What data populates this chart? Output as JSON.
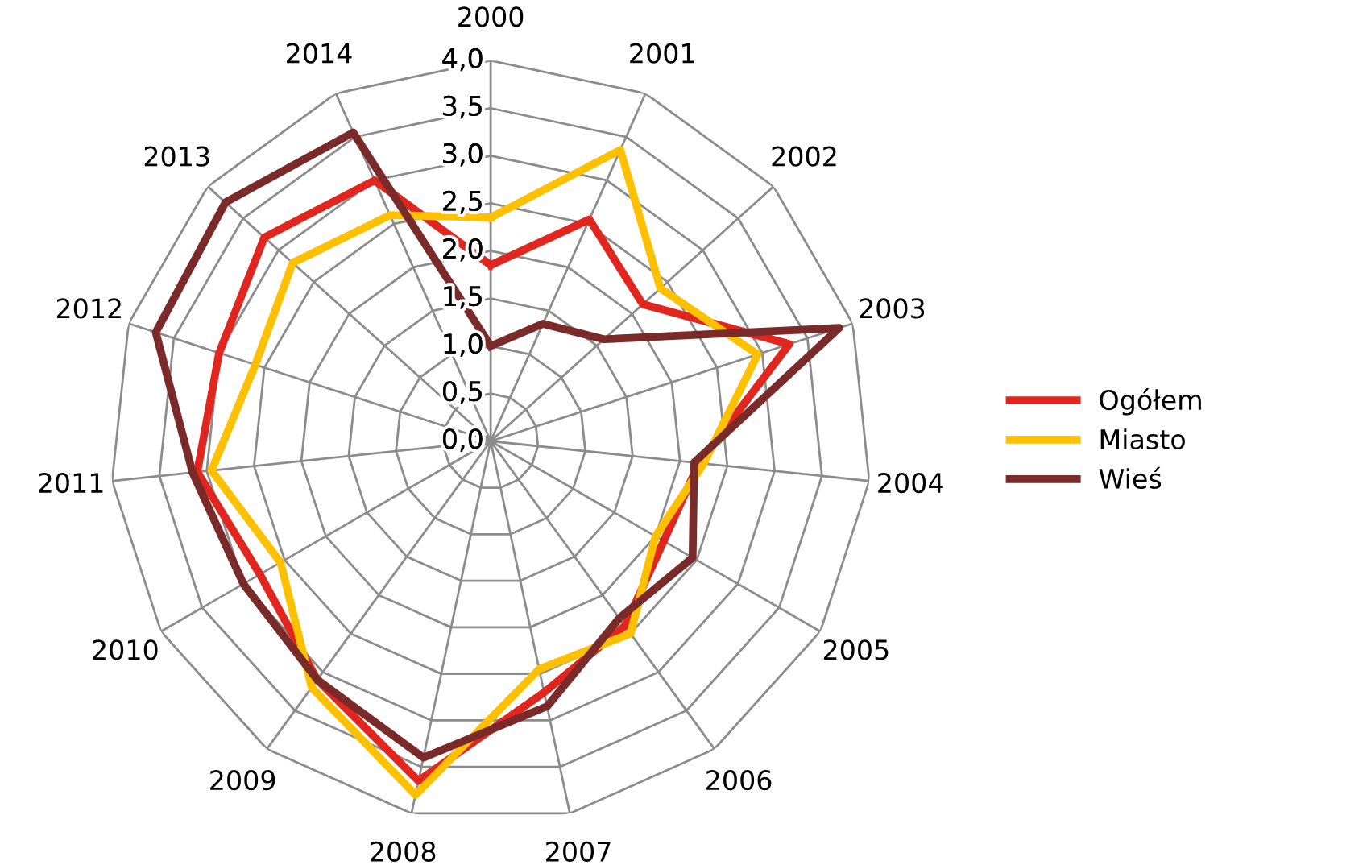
{
  "chart_data": {
    "type": "radar",
    "categories": [
      "2000",
      "2001",
      "2002",
      "2003",
      "2004",
      "2005",
      "2006",
      "2007",
      "2008",
      "2009",
      "2010",
      "2011",
      "2012",
      "2013",
      "2014"
    ],
    "ylim": [
      0,
      4
    ],
    "yticks": [
      {
        "value": 0,
        "label": "0,0"
      },
      {
        "value": 0.5,
        "label": "0,5"
      },
      {
        "value": 1,
        "label": "1,0"
      },
      {
        "value": 1.5,
        "label": "1,5"
      },
      {
        "value": 2,
        "label": "2,0"
      },
      {
        "value": 2.5,
        "label": "2,5"
      },
      {
        "value": 3,
        "label": "3,0"
      },
      {
        "value": 3.5,
        "label": "3,5"
      },
      {
        "value": 4,
        "label": "4,0"
      }
    ],
    "grid": true,
    "legend": "right",
    "marker": "none",
    "series": [
      {
        "name": "Ogółem",
        "color": "#e0261e",
        "values": [
          1.85,
          2.55,
          2.15,
          3.3,
          2.2,
          2.1,
          2.4,
          2.7,
          3.65,
          3.1,
          2.8,
          3.1,
          3.0,
          3.2,
          3.0
        ]
      },
      {
        "name": "Miasto",
        "color": "#ffc000",
        "values": [
          2.35,
          3.35,
          2.4,
          2.95,
          2.25,
          2.0,
          2.5,
          2.45,
          3.8,
          3.2,
          2.55,
          2.95,
          2.6,
          2.8,
          2.6
        ]
      },
      {
        "name": "Wieś",
        "color": "#7b2a2a",
        "values": [
          1.0,
          1.35,
          1.6,
          3.85,
          2.15,
          2.45,
          2.3,
          2.85,
          3.4,
          3.1,
          3.0,
          3.15,
          3.7,
          3.75,
          3.55
        ]
      }
    ]
  }
}
